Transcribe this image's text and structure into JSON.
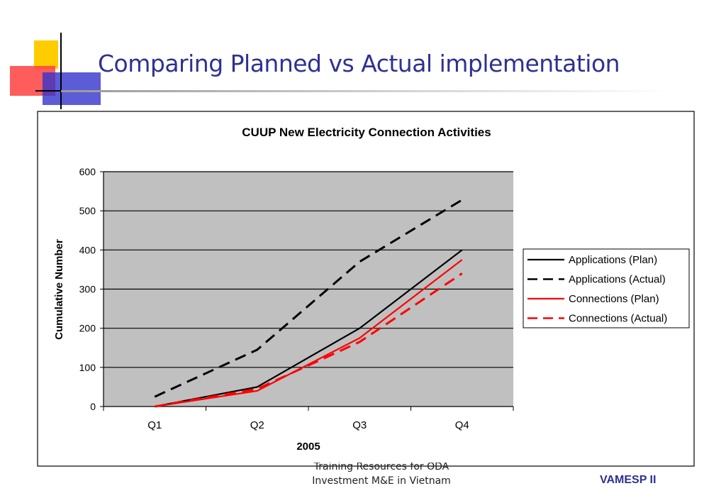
{
  "slide": {
    "title": "Comparing Planned vs Actual implementation",
    "footer_line1": "Training Resources for ODA",
    "footer_line2": "Investment M&E  in Vietnam",
    "footer_brand": "VAMESP II"
  },
  "chart_data": {
    "type": "line",
    "title": "CUUP New Electricity Connection Activities",
    "xlabel": "2005",
    "ylabel": "Cumulative Number",
    "categories": [
      "Q1",
      "Q2",
      "Q3",
      "Q4"
    ],
    "ylim": [
      0,
      600
    ],
    "yticks": [
      "0",
      "100",
      "200",
      "300",
      "400",
      "500",
      "600"
    ],
    "grid": true,
    "legend_position": "right",
    "plot_background": "#c0c0c0",
    "series": [
      {
        "name": "Applications (Plan)",
        "values": [
          0,
          50,
          200,
          400
        ],
        "color": "#000000",
        "dash": "solid"
      },
      {
        "name": "Applications (Actual)",
        "values": [
          25,
          145,
          370,
          528
        ],
        "color": "#000000",
        "dash": "dashed"
      },
      {
        "name": "Connections (Plan)",
        "values": [
          0,
          40,
          175,
          375
        ],
        "color": "#ff0000",
        "dash": "solid"
      },
      {
        "name": "Connections (Actual)",
        "values": [
          0,
          45,
          165,
          340
        ],
        "color": "#ff0000",
        "dash": "dashed"
      }
    ]
  }
}
